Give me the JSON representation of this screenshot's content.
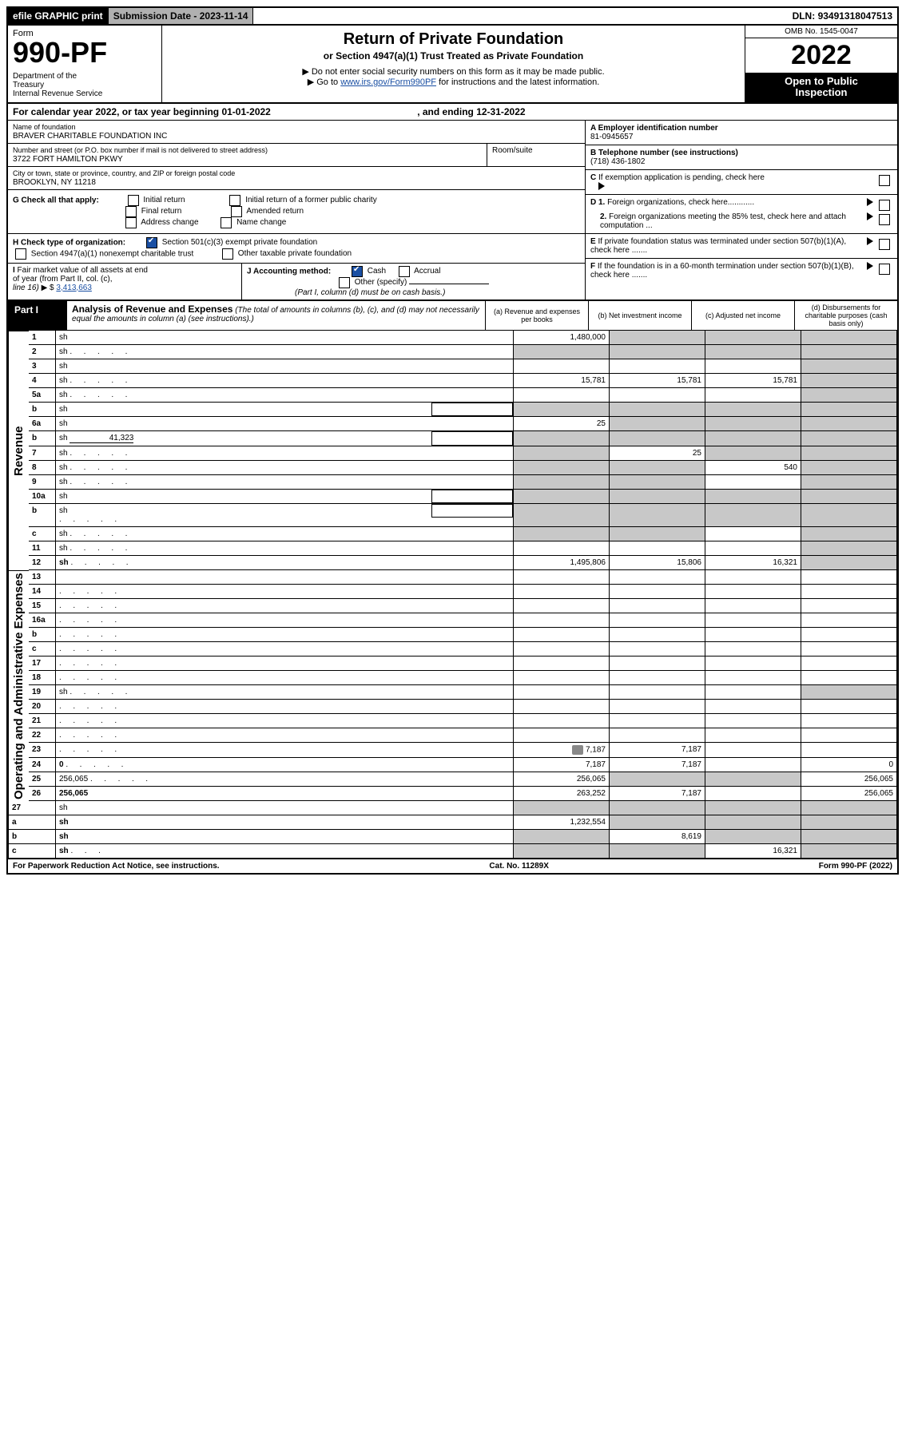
{
  "topbar": {
    "efile": "efile GRAPHIC print",
    "subdate_label": "Submission Date - ",
    "subdate": "2023-11-14",
    "dln_label": "DLN: ",
    "dln": "93491318047513"
  },
  "title": {
    "form": "Form",
    "number": "990-PF",
    "dept": "Department of the Treasury\nInternal Revenue Service",
    "h1": "Return of Private Foundation",
    "h2": "or Section 4947(a)(1) Trust Treated as Private Foundation",
    "note1": "▶ Do not enter social security numbers on this form as it may be made public.",
    "note2_pre": "▶ Go to ",
    "note2_link": "www.irs.gov/Form990PF",
    "note2_post": " for instructions and the latest information.",
    "omb": "OMB No. 1545-0047",
    "year": "2022",
    "otp": "Open to Public Inspection"
  },
  "calline": {
    "pre": "For calendar year 2022, or tax year beginning ",
    "begin": "01-01-2022",
    "mid": ", and ending ",
    "end": "12-31-2022"
  },
  "hdr": {
    "name_label": "Name of foundation",
    "name": "BRAVER CHARITABLE FOUNDATION INC",
    "addr_label": "Number and street (or P.O. box number if mail is not delivered to street address)",
    "addr": "3722 FORT HAMILTON PKWY",
    "room_label": "Room/suite",
    "city_label": "City or town, state or province, country, and ZIP or foreign postal code",
    "city": "BROOKLYN, NY  11218",
    "a_label": "A Employer identification number",
    "a_val": "81-0945657",
    "b_label": "B Telephone number (see instructions)",
    "b_val": "(718) 436-1802",
    "c_label": "C If exemption application is pending, check here",
    "d1": "D 1. Foreign organizations, check here............",
    "d2": "2. Foreign organizations meeting the 85% test, check here and attach computation ...",
    "e": "E  If private foundation status was terminated under section 507(b)(1)(A), check here .......",
    "f": "F  If the foundation is in a 60-month termination under section 507(b)(1)(B), check here .......",
    "g_label": "G Check all that apply:",
    "g_opts": [
      "Initial return",
      "Final return",
      "Address change",
      "Initial return of a former public charity",
      "Amended return",
      "Name change"
    ],
    "h_label": "H Check type of organization:",
    "h_1": "Section 501(c)(3) exempt private foundation",
    "h_2": "Section 4947(a)(1) nonexempt charitable trust",
    "h_3": "Other taxable private foundation",
    "i_label": "I Fair market value of all assets at end of year (from Part II, col. (c), line 16)",
    "i_val": "3,413,663",
    "j_label": "J Accounting method:",
    "j_cash": "Cash",
    "j_accr": "Accrual",
    "j_other": "Other (specify)",
    "j_note": "(Part I, column (d) must be on cash basis.)"
  },
  "part1": {
    "label": "Part I",
    "title": "Analysis of Revenue and Expenses",
    "subtitle": "(The total of amounts in columns (b), (c), and (d) may not necessarily equal the amounts in column (a) (see instructions).)",
    "cols": {
      "a": "(a)   Revenue and expenses per books",
      "b": "(b)   Net investment income",
      "c": "(c)   Adjusted net income",
      "d": "(d)   Disbursements for charitable purposes (cash basis only)"
    }
  },
  "sections": {
    "rev": "Revenue",
    "exp": "Operating and Administrative Expenses"
  },
  "rows": [
    {
      "n": "1",
      "d": "sh",
      "a": "1,480,000",
      "b": "sh",
      "c": "sh"
    },
    {
      "n": "2",
      "d": "sh",
      "dots": true,
      "a": "sh",
      "b": "sh",
      "c": "sh"
    },
    {
      "n": "3",
      "d": "sh",
      "a": "",
      "b": "",
      "c": ""
    },
    {
      "n": "4",
      "d": "sh",
      "dots": true,
      "a": "15,781",
      "b": "15,781",
      "c": "15,781"
    },
    {
      "n": "5a",
      "d": "sh",
      "dots": true,
      "a": "",
      "b": "",
      "c": ""
    },
    {
      "n": "b",
      "d": "sh",
      "sub": true,
      "a": "sh",
      "b": "sh",
      "c": "sh"
    },
    {
      "n": "6a",
      "d": "sh",
      "a": "25",
      "b": "sh",
      "c": "sh"
    },
    {
      "n": "b",
      "d": "sh",
      "sub": true,
      "inline": "41,323",
      "a": "sh",
      "b": "sh",
      "c": "sh"
    },
    {
      "n": "7",
      "d": "sh",
      "dots": true,
      "a": "sh",
      "b": "25",
      "c": "sh"
    },
    {
      "n": "8",
      "d": "sh",
      "dots": true,
      "a": "sh",
      "b": "sh",
      "c": "540"
    },
    {
      "n": "9",
      "d": "sh",
      "dots": true,
      "a": "sh",
      "b": "sh",
      "c": ""
    },
    {
      "n": "10a",
      "d": "sh",
      "sub": true,
      "a": "sh",
      "b": "sh",
      "c": "sh"
    },
    {
      "n": "b",
      "d": "sh",
      "dots": true,
      "sub": true,
      "a": "sh",
      "b": "sh",
      "c": "sh"
    },
    {
      "n": "c",
      "d": "sh",
      "dots": true,
      "a": "sh",
      "b": "sh",
      "c": ""
    },
    {
      "n": "11",
      "d": "sh",
      "dots": true,
      "a": "",
      "b": "",
      "c": ""
    },
    {
      "n": "12",
      "d": "sh",
      "dots": true,
      "bold": true,
      "a": "1,495,806",
      "b": "15,806",
      "c": "16,321"
    }
  ],
  "exprows": [
    {
      "n": "13",
      "d": "",
      "a": "",
      "b": "",
      "c": ""
    },
    {
      "n": "14",
      "d": "",
      "dots": true,
      "a": "",
      "b": "",
      "c": ""
    },
    {
      "n": "15",
      "d": "",
      "dots": true,
      "a": "",
      "b": "",
      "c": ""
    },
    {
      "n": "16a",
      "d": "",
      "dots": true,
      "a": "",
      "b": "",
      "c": ""
    },
    {
      "n": "b",
      "d": "",
      "dots": true,
      "a": "",
      "b": "",
      "c": ""
    },
    {
      "n": "c",
      "d": "",
      "dots": true,
      "a": "",
      "b": "",
      "c": ""
    },
    {
      "n": "17",
      "d": "",
      "dots": true,
      "a": "",
      "b": "",
      "c": ""
    },
    {
      "n": "18",
      "d": "",
      "dots": true,
      "a": "",
      "b": "",
      "c": ""
    },
    {
      "n": "19",
      "d": "sh",
      "dots": true,
      "a": "",
      "b": "",
      "c": ""
    },
    {
      "n": "20",
      "d": "",
      "dots": true,
      "a": "",
      "b": "",
      "c": ""
    },
    {
      "n": "21",
      "d": "",
      "dots": true,
      "a": "",
      "b": "",
      "c": ""
    },
    {
      "n": "22",
      "d": "",
      "dots": true,
      "a": "",
      "b": "",
      "c": ""
    },
    {
      "n": "23",
      "d": "",
      "dots": true,
      "icon": true,
      "a": "7,187",
      "b": "7,187",
      "c": ""
    },
    {
      "n": "24",
      "d": "0",
      "dots": true,
      "bold": true,
      "a": "7,187",
      "b": "7,187",
      "c": ""
    },
    {
      "n": "25",
      "d": "256,065",
      "dots": true,
      "a": "256,065",
      "b": "sh",
      "c": "sh"
    },
    {
      "n": "26",
      "d": "256,065",
      "bold": true,
      "a": "263,252",
      "b": "7,187",
      "c": ""
    }
  ],
  "botrows": [
    {
      "n": "27",
      "d": "sh",
      "a": "sh",
      "b": "sh",
      "c": "sh"
    },
    {
      "n": "a",
      "d": "sh",
      "bold": true,
      "a": "1,232,554",
      "b": "sh",
      "c": "sh"
    },
    {
      "n": "b",
      "d": "sh",
      "bold": true,
      "a": "sh",
      "b": "8,619",
      "c": "sh"
    },
    {
      "n": "c",
      "d": "sh",
      "dots": true,
      "bold": true,
      "a": "sh",
      "b": "sh",
      "c": "16,321"
    }
  ],
  "footer": {
    "left": "For Paperwork Reduction Act Notice, see instructions.",
    "mid": "Cat. No. 11289X",
    "right": "Form 990-PF (2022)"
  },
  "style": {
    "shade": "#c8c8c8",
    "link": "#1a4fa3"
  }
}
